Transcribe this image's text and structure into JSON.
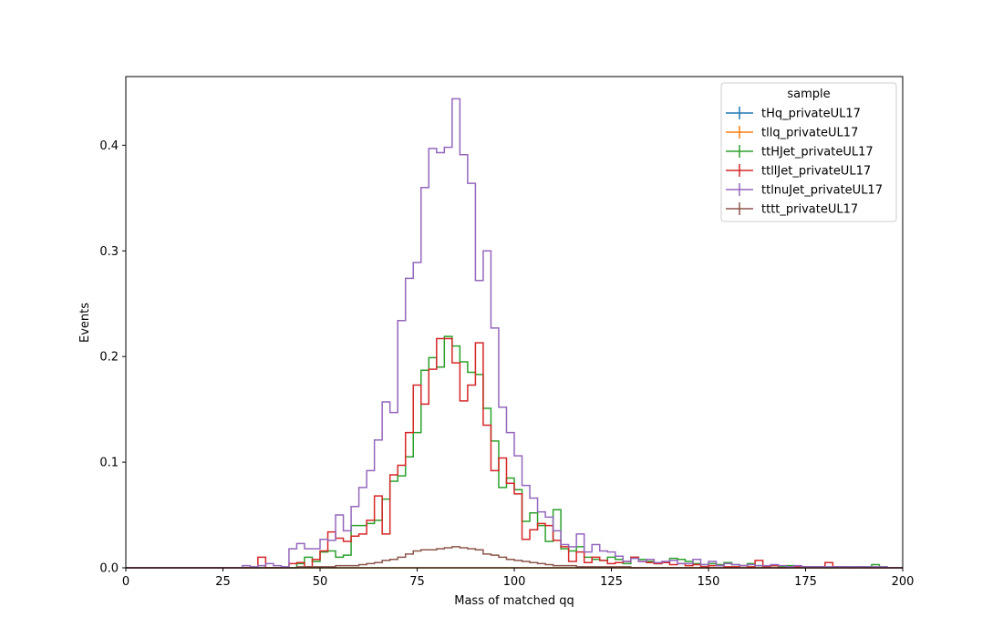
{
  "chart_data": {
    "type": "step",
    "xlabel": "Mass of matched qq",
    "ylabel": "Events",
    "xlim": [
      0,
      200
    ],
    "ylim": [
      0,
      0.465
    ],
    "x_ticks": [
      0,
      25,
      50,
      75,
      100,
      125,
      150,
      175,
      200
    ],
    "y_ticks": [
      0.0,
      0.1,
      0.2,
      0.3,
      0.4
    ],
    "x_tick_labels": [
      "0",
      "25",
      "50",
      "75",
      "100",
      "125",
      "150",
      "175",
      "200"
    ],
    "y_tick_labels": [
      "0.0",
      "0.1",
      "0.2",
      "0.3",
      "0.4"
    ],
    "bin_width": 2,
    "bins_start": 0,
    "legend_title": "sample",
    "legend_position": "top-right",
    "grid": false,
    "series": [
      {
        "name": "tHq_privateUL17",
        "color": "#1f77b4",
        "values": [
          0,
          0,
          0,
          0,
          0,
          0,
          0,
          0,
          0,
          0,
          0,
          0,
          0,
          0,
          0,
          0,
          0,
          0,
          0,
          0,
          0,
          0,
          0,
          0,
          0,
          0,
          0,
          0,
          0,
          0,
          0,
          0,
          0,
          0,
          0,
          0,
          0,
          0,
          0,
          0,
          0,
          0,
          0,
          0,
          0,
          0,
          0,
          0,
          0,
          0,
          0,
          0,
          0,
          0,
          0,
          0,
          0,
          0,
          0,
          0,
          0,
          0,
          0,
          0,
          0,
          0,
          0,
          0,
          0,
          0,
          0,
          0,
          0,
          0,
          0,
          0,
          0,
          0,
          0,
          0,
          0,
          0,
          0,
          0,
          0,
          0,
          0,
          0,
          0,
          0,
          0,
          0,
          0,
          0,
          0,
          0,
          0,
          0,
          0,
          0
        ]
      },
      {
        "name": "tllq_privateUL17",
        "color": "#ff7f0e",
        "values": [
          0,
          0,
          0,
          0,
          0,
          0,
          0,
          0,
          0,
          0,
          0,
          0,
          0,
          0,
          0,
          0,
          0,
          0,
          0,
          0,
          0,
          0,
          0,
          0,
          0,
          0,
          0,
          0,
          0,
          0,
          0,
          0,
          0,
          0,
          0,
          0,
          0,
          0,
          0,
          0,
          0,
          0,
          0,
          0,
          0,
          0,
          0,
          0,
          0,
          0,
          0,
          0,
          0,
          0,
          0,
          0,
          0,
          0,
          0,
          0,
          0,
          0,
          0,
          0,
          0,
          0,
          0,
          0,
          0,
          0,
          0,
          0,
          0,
          0,
          0,
          0,
          0,
          0,
          0,
          0,
          0,
          0,
          0,
          0,
          0,
          0,
          0,
          0,
          0,
          0,
          0,
          0,
          0,
          0,
          0,
          0,
          0,
          0,
          0,
          0
        ]
      },
      {
        "name": "ttHJet_privateUL17",
        "color": "#2ca02c",
        "values": [
          0,
          0,
          0,
          0,
          0,
          0,
          0,
          0,
          0,
          0,
          0,
          0,
          0,
          0,
          0,
          0,
          0,
          0,
          0,
          0,
          0,
          0,
          0.004,
          0.01,
          0.006,
          0.015,
          0.016,
          0.01,
          0.012,
          0.04,
          0.04,
          0.042,
          0.045,
          0.065,
          0.082,
          0.087,
          0.105,
          0.128,
          0.187,
          0.199,
          0.19,
          0.219,
          0.21,
          0.195,
          0.185,
          0.183,
          0.151,
          0.12,
          0.076,
          0.085,
          0.074,
          0.044,
          0.052,
          0.04,
          0.025,
          0.055,
          0.018,
          0.016,
          0.02,
          0.01,
          0.008,
          0.007,
          0.01,
          0.008,
          0.004,
          0.01,
          0.008,
          0.006,
          0.004,
          0.005,
          0.009,
          0.008,
          0.006,
          0.004,
          0.003,
          0.004,
          0.003,
          0.005,
          0.003,
          0.002,
          0.004,
          0.002,
          0.001,
          0.002,
          0.001,
          0.002,
          0.001,
          0.001,
          0.001,
          0.001,
          0.0,
          0.001,
          0.001,
          0.001,
          0.001,
          0.001,
          0.003,
          0.001,
          0,
          0
        ]
      },
      {
        "name": "ttllJet_privateUL17",
        "color": "#d62728",
        "values": [
          0,
          0,
          0,
          0,
          0,
          0,
          0,
          0,
          0,
          0,
          0,
          0,
          0,
          0,
          0,
          0,
          0,
          0.01,
          0,
          0,
          0,
          0.004,
          0.005,
          0.001,
          0.008,
          0.016,
          0.034,
          0.028,
          0.025,
          0.03,
          0.032,
          0.045,
          0.068,
          0.032,
          0.088,
          0.097,
          0.128,
          0.173,
          0.155,
          0.188,
          0.217,
          0.217,
          0.194,
          0.158,
          0.173,
          0.213,
          0.135,
          0.092,
          0.104,
          0.08,
          0.07,
          0.027,
          0.036,
          0.042,
          0.04,
          0.026,
          0.02,
          0.006,
          0.015,
          0.005,
          0.01,
          0.007,
          0.004,
          0.005,
          0.006,
          0.01,
          0.006,
          0.005,
          0.004,
          0.005,
          0.003,
          0.004,
          0.002,
          0.003,
          0.001,
          0.002,
          0.002,
          0.001,
          0.001,
          0.002,
          0.001,
          0.007,
          0.001,
          0.002,
          0.0,
          0.001,
          0.001,
          0.001,
          0.001,
          0.001,
          0.005,
          0.001,
          0.001,
          0.0,
          0.001,
          0.0,
          0.0,
          0.0,
          0,
          0
        ]
      },
      {
        "name": "ttlnuJet_privateUL17",
        "color": "#9467bd",
        "values": [
          0,
          0,
          0,
          0,
          0,
          0,
          0,
          0,
          0,
          0,
          0,
          0,
          0,
          0,
          0,
          0.002,
          0.001,
          0.002,
          0.004,
          0.002,
          0.001,
          0.018,
          0.023,
          0.018,
          0.018,
          0.027,
          0.026,
          0.05,
          0.035,
          0.058,
          0.076,
          0.092,
          0.121,
          0.157,
          0.147,
          0.234,
          0.274,
          0.289,
          0.36,
          0.397,
          0.393,
          0.398,
          0.444,
          0.391,
          0.364,
          0.272,
          0.3,
          0.227,
          0.152,
          0.128,
          0.106,
          0.078,
          0.066,
          0.053,
          0.048,
          0.035,
          0.022,
          0.02,
          0.032,
          0.015,
          0.022,
          0.016,
          0.015,
          0.011,
          0.006,
          0.009,
          0.006,
          0.008,
          0.005,
          0.006,
          0.007,
          0.004,
          0.004,
          0.008,
          0.003,
          0.006,
          0.002,
          0.004,
          0.003,
          0.002,
          0.003,
          0.002,
          0.002,
          0.003,
          0.002,
          0.001,
          0.002,
          0.001,
          0.001,
          0.001,
          0.001,
          0.001,
          0.001,
          0.001,
          0.001,
          0.001,
          0.001,
          0.001,
          0,
          0
        ]
      },
      {
        "name": "tttt_privateUL17",
        "color": "#8c564b",
        "values": [
          0,
          0,
          0,
          0,
          0,
          0,
          0,
          0,
          0,
          0,
          0,
          0,
          0,
          0,
          0,
          0,
          0,
          0,
          0,
          0,
          0,
          0,
          0.001,
          0.001,
          0.001,
          0.001,
          0.001,
          0.002,
          0.002,
          0.002,
          0.003,
          0.004,
          0.005,
          0.007,
          0.008,
          0.01,
          0.013,
          0.016,
          0.017,
          0.017,
          0.018,
          0.019,
          0.02,
          0.019,
          0.018,
          0.017,
          0.013,
          0.012,
          0.01,
          0.008,
          0.007,
          0.006,
          0.005,
          0.004,
          0.003,
          0.002,
          0.002,
          0.002,
          0.001,
          0.001,
          0.001,
          0.001,
          0.001,
          0.001,
          0.001,
          0.0,
          0.0,
          0.0,
          0.0,
          0.0,
          0,
          0,
          0,
          0,
          0,
          0,
          0,
          0,
          0,
          0,
          0,
          0,
          0,
          0,
          0,
          0,
          0,
          0,
          0,
          0,
          0,
          0,
          0,
          0,
          0,
          0,
          0,
          0,
          0,
          0
        ]
      }
    ]
  }
}
